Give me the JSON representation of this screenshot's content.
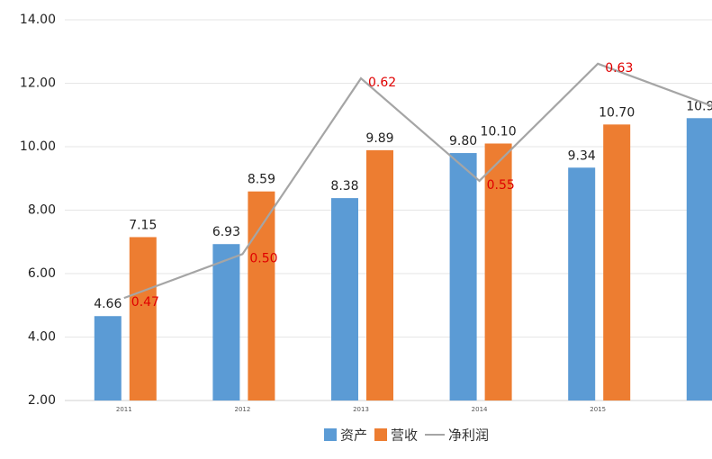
{
  "chart_data": {
    "type": "bar",
    "categories": [
      "2011",
      "2012",
      "2013",
      "2014",
      "2015",
      null
    ],
    "series": [
      {
        "name": "资产",
        "color": "#5b9bd5",
        "values": [
          4.66,
          6.93,
          8.38,
          9.8,
          9.34,
          10.9
        ],
        "value_labels": [
          "4.66",
          "6.93",
          "8.38",
          "9.80",
          "9.34",
          "10.9"
        ]
      },
      {
        "name": "营收",
        "color": "#ed7d31",
        "values": [
          7.15,
          8.59,
          9.89,
          10.1,
          10.7,
          null
        ],
        "value_labels": [
          "7.15",
          "8.59",
          "9.89",
          "10.10",
          "10.70",
          null
        ]
      },
      {
        "name": "净利润",
        "color": "#a5a5a5",
        "type": "line",
        "axis": "y2",
        "values": [
          0.47,
          0.5,
          0.62,
          0.55,
          0.63,
          0.6
        ],
        "value_labels": [
          "0.47",
          "0.50",
          "0.62",
          "0.55",
          "0.63",
          null
        ]
      }
    ],
    "ylim": [
      2,
      14
    ],
    "yticks": [
      {
        "value": 2,
        "label": "2.00"
      },
      {
        "value": 4,
        "label": "4.00"
      },
      {
        "value": 6,
        "label": "6.00"
      },
      {
        "value": 8,
        "label": "8.00"
      },
      {
        "value": 10,
        "label": "10.00"
      },
      {
        "value": 12,
        "label": "12.00"
      },
      {
        "value": 14,
        "label": "14.00"
      }
    ],
    "y2lim": [
      0.4,
      0.66
    ],
    "grid": true,
    "legend": "bottom"
  }
}
